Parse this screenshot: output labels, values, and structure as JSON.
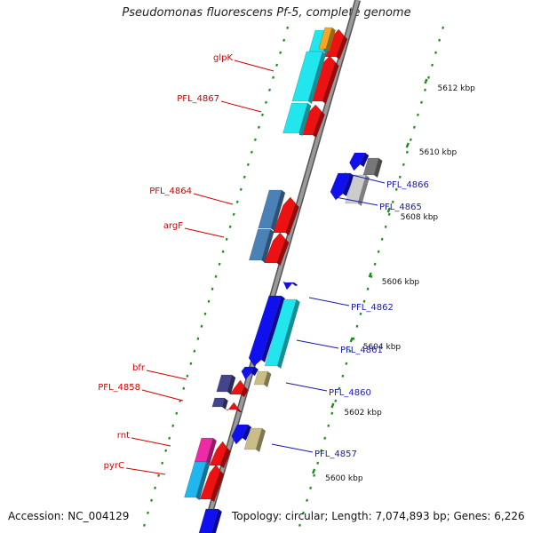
{
  "title": "Pseudomonas fluorescens Pf-5, complete genome",
  "footer": {
    "accession": "Accession: NC_004129",
    "summary": "Topology: circular; Length: 7,074,893 bp; Genes: 6,226"
  },
  "scale_labels": [
    "5612 kbp",
    "5610 kbp",
    "5608 kbp",
    "5606 kbp",
    "5604 kbp",
    "5602 kbp",
    "5600 kbp"
  ],
  "forward_genes": [
    {
      "label": "glpK",
      "color": "#d40000"
    },
    {
      "label": "PFL_4867",
      "color": "#d40000"
    },
    {
      "label": "PFL_4864",
      "color": "#d40000"
    },
    {
      "label": "argF",
      "color": "#d40000"
    },
    {
      "label": "bfr",
      "color": "#d40000"
    },
    {
      "label": "PFL_4858",
      "color": "#d40000"
    },
    {
      "label": "rnt",
      "color": "#d40000"
    },
    {
      "label": "pyrC",
      "color": "#d40000"
    }
  ],
  "reverse_genes": [
    {
      "label": "PFL_4866",
      "color": "#1a1aa8"
    },
    {
      "label": "PFL_4865",
      "color": "#1a1aa8"
    },
    {
      "label": "PFL_4862",
      "color": "#1a1aa8"
    },
    {
      "label": "PFL_4861",
      "color": "#1a1aa8"
    },
    {
      "label": "PFL_4860",
      "color": "#1a1aa8"
    },
    {
      "label": "PFL_4857",
      "color": "#1a1aa8"
    }
  ],
  "colors": {
    "backbone": "#9a9a9a",
    "tick": "#1e8c1e",
    "forward_arrow": "#ee1111",
    "reverse_arrow": "#1010ee",
    "cog_cyan": "#22e6ee",
    "cog_steelblue": "#4a82b8",
    "cog_magenta": "#ee2aa6",
    "cog_skyblue": "#22b6ee",
    "cog_indigo": "#44448c",
    "cog_khaki": "#cbbd86",
    "cog_gray": "#777777",
    "cog_lightgray": "#cccccc",
    "cog_orange": "#f5a623"
  }
}
